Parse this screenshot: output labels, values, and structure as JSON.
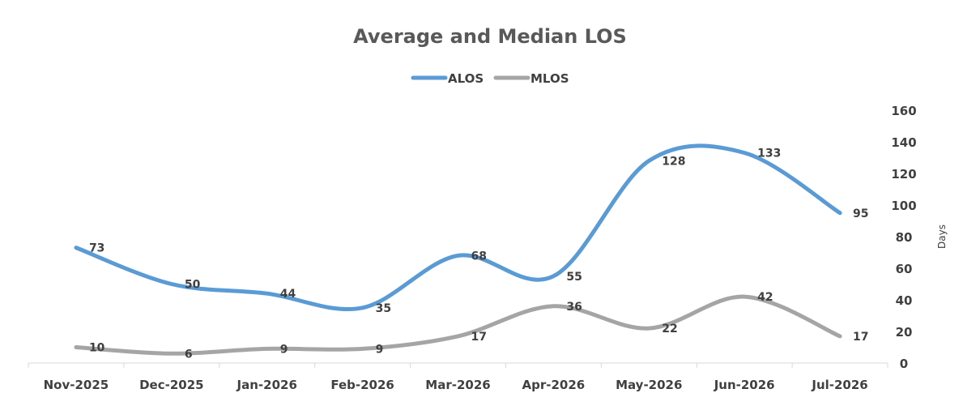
{
  "chart_data": {
    "type": "line",
    "title": "Average and Median LOS",
    "xlabel": "",
    "ylabel": "Days",
    "categories": [
      "Nov-2025",
      "Dec-2025",
      "Jan-2026",
      "Feb-2026",
      "Mar-2026",
      "Apr-2026",
      "May-2026",
      "Jun-2026",
      "Jul-2026"
    ],
    "series": [
      {
        "name": "ALOS",
        "values": [
          73,
          50,
          44,
          35,
          68,
          55,
          128,
          133,
          95
        ],
        "color": "#5B9BD5"
      },
      {
        "name": "MLOS",
        "values": [
          10,
          6,
          9,
          9,
          17,
          36,
          22,
          42,
          17
        ],
        "color": "#A5A5A5"
      }
    ],
    "ylim": [
      0,
      160
    ],
    "yticks": [
      0,
      20,
      40,
      60,
      80,
      100,
      120,
      140,
      160
    ],
    "y_axis_side": "right",
    "smooth": true,
    "grid": false,
    "legend_position": "top",
    "data_labels": true
  }
}
